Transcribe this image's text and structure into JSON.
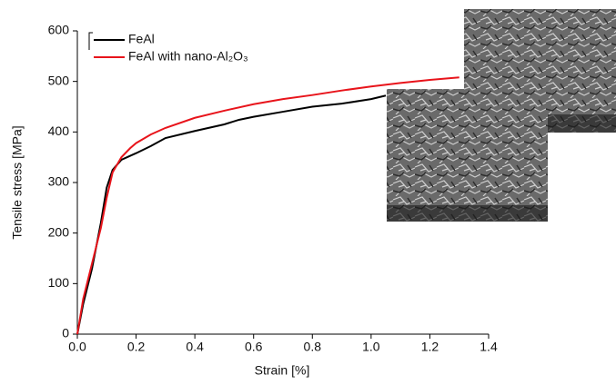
{
  "chart_data": {
    "type": "line",
    "x_label": "Strain [%]",
    "y_label": "Tensile stress [MPa]",
    "xlim": [
      0,
      1.4
    ],
    "ylim": [
      0,
      600
    ],
    "xticks": [
      {
        "value": 0,
        "label": "0.0"
      },
      0.2,
      0.4,
      0.6,
      0.8,
      {
        "value": 1,
        "label": "1.0"
      },
      1.2,
      1.4
    ],
    "yticks": [
      0,
      100,
      200,
      300,
      400,
      500,
      600
    ],
    "legend": "upper left",
    "series": [
      {
        "name": "FeAl",
        "color": "#000000",
        "x": [
          0,
          0.02,
          0.05,
          0.08,
          0.1,
          0.12,
          0.15,
          0.2,
          0.25,
          0.3,
          0.4,
          0.5,
          0.55,
          0.6,
          0.7,
          0.8,
          0.9,
          1.0,
          1.05
        ],
        "values": [
          0,
          60,
          130,
          220,
          290,
          325,
          345,
          358,
          372,
          388,
          402,
          415,
          424,
          430,
          440,
          450,
          456,
          465,
          472
        ]
      },
      {
        "name": "FeAl with nano-Al₂O₃",
        "color": "#e8141b",
        "x": [
          0,
          0.02,
          0.05,
          0.08,
          0.1,
          0.12,
          0.15,
          0.18,
          0.2,
          0.25,
          0.3,
          0.4,
          0.5,
          0.6,
          0.7,
          0.8,
          0.9,
          1.0,
          1.1,
          1.2,
          1.3
        ],
        "values": [
          0,
          70,
          140,
          210,
          270,
          320,
          350,
          368,
          378,
          395,
          408,
          428,
          442,
          455,
          465,
          473,
          482,
          490,
          497,
          503,
          508
        ]
      }
    ]
  }
}
